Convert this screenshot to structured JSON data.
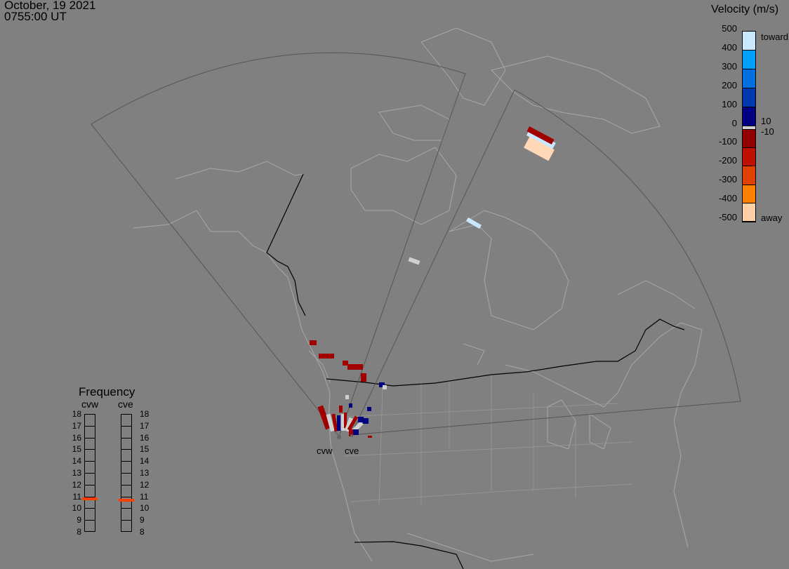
{
  "header": {
    "date": "October, 19 2021",
    "time": "0755:00 UT"
  },
  "colorbar": {
    "title": "Velocity (m/s)",
    "ticks": [
      "500",
      "400",
      "300",
      "200",
      "100",
      "0",
      "-100",
      "-200",
      "-300",
      "-400",
      "-500"
    ],
    "inner_labels": [
      "10",
      "-10"
    ],
    "top_label": "toward",
    "bottom_label": "away",
    "colors": [
      "#c8e8ff",
      "#00a0ff",
      "#0070e0",
      "#0038b0",
      "#000080",
      "#d0d0d0",
      "#900000",
      "#c01000",
      "#e04000",
      "#ff8000",
      "#ffd0a8"
    ]
  },
  "frequency": {
    "title": "Frequency",
    "radars": [
      {
        "name": "cvw",
        "value_mhz": 10.8
      },
      {
        "name": "cve",
        "value_mhz": 10.7
      }
    ],
    "ticks": [
      "18",
      "17",
      "16",
      "15",
      "14",
      "13",
      "12",
      "11",
      "10",
      "9",
      "8"
    ],
    "range": [
      8,
      18
    ],
    "marker_color": "#ff4000"
  },
  "sites": {
    "west": "cvw",
    "east": "cve"
  }
}
